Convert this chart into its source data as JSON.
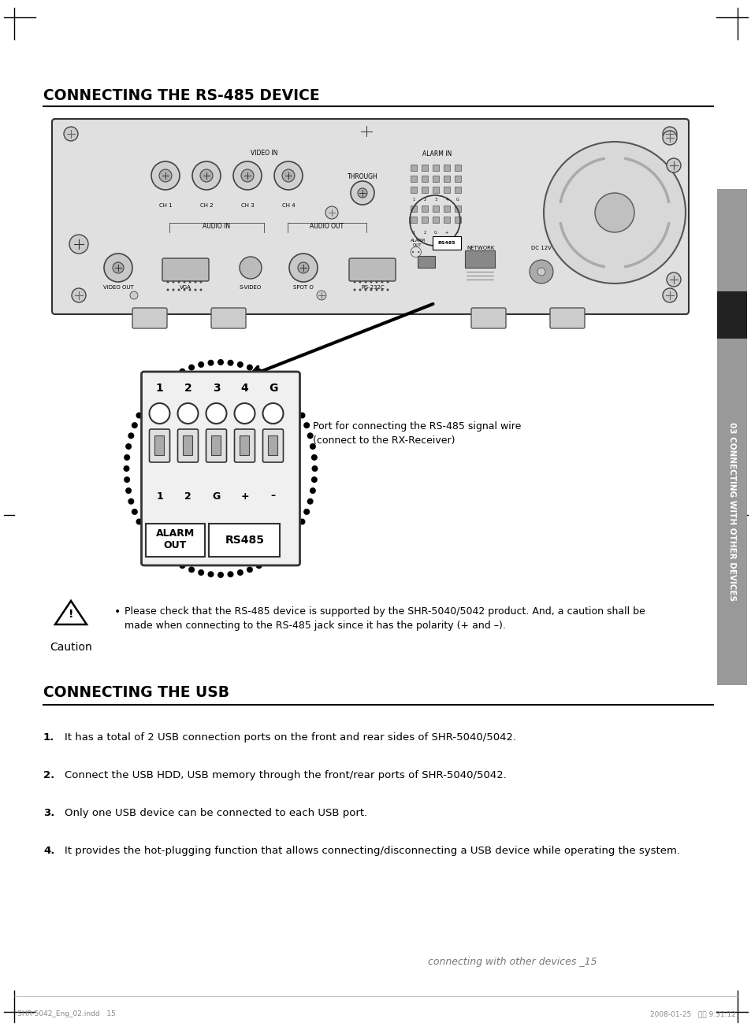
{
  "bg_color": "#ffffff",
  "title1": "CONNECTING THE RS-485 DEVICE",
  "title2": "CONNECTING THE USB",
  "caution_text_line1": "Please check that the RS-485 device is supported by the SHR-5040/5042 product. And, a caution shall be",
  "caution_text_line2": "made when connecting to the RS-485 jack since it has the polarity (+ and –).",
  "caution_label": "Caution",
  "usb_items": [
    "It has a total of 2 USB connection ports on the front and rear sides of SHR-5040/5042.",
    "Connect the USB HDD, USB memory through the front/rear ports of SHR-5040/5042.",
    "Only one USB device can be connected to each USB port.",
    "It provides the hot-plugging function that allows connecting/disconnecting a USB device while operating the system."
  ],
  "footer_text": "connecting with other devices _15",
  "footer_left": "SHR-5042_Eng_02.indd   15",
  "footer_right": "2008-01-25   오전 9:31:12",
  "side_label": "03 CONNECTING WITH OTHER DEVICES",
  "port_label_line1": "Port for connecting the RS-485 signal wire",
  "port_label_line2": "(connect to the RX-Receiver)",
  "side_bar_color": "#999999",
  "side_dark_color": "#222222"
}
